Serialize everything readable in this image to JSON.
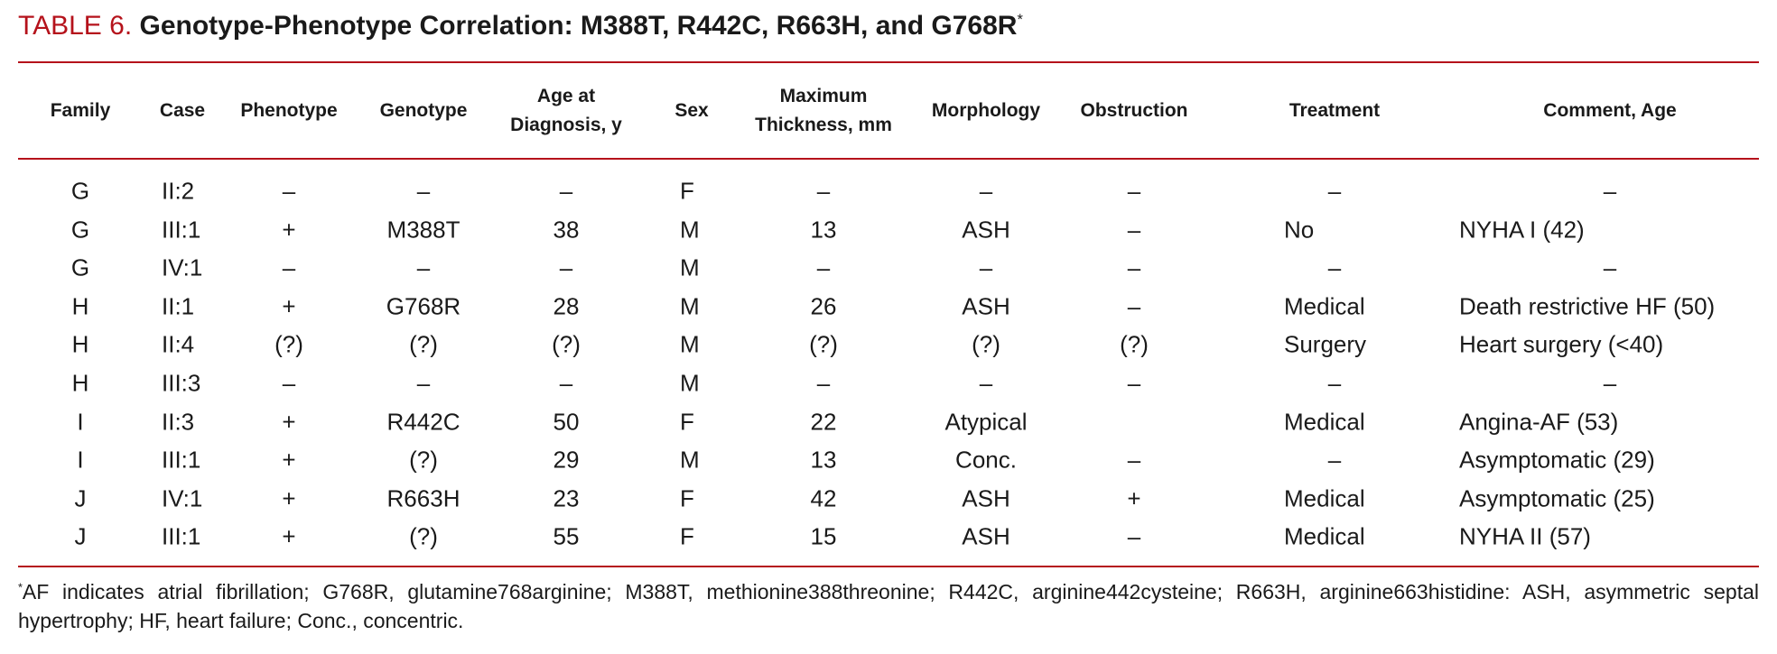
{
  "header": {
    "label": "TABLE 6.",
    "title": "Genotype-Phenotype Correlation: M388T, R442C, R663H, and G768R",
    "marker": "*"
  },
  "table": {
    "columns": [
      [
        "Family"
      ],
      [
        "Case"
      ],
      [
        "Phenotype"
      ],
      [
        "Genotype"
      ],
      [
        "Age at",
        "Diagnosis, y"
      ],
      [
        "Sex"
      ],
      [
        "Maximum",
        "Thickness, mm"
      ],
      [
        "Morphology"
      ],
      [
        "Obstruction"
      ],
      [
        "Treatment"
      ],
      [
        "Comment, Age"
      ]
    ],
    "rows": [
      [
        "G",
        "II:2",
        "–",
        "–",
        "–",
        "F",
        "–",
        "–",
        "–",
        "–",
        "–"
      ],
      [
        "G",
        "III:1",
        "+",
        "M388T",
        "38",
        "M",
        "13",
        "ASH",
        "–",
        "No",
        "NYHA I (42)"
      ],
      [
        "G",
        "IV:1",
        "–",
        "–",
        "–",
        "M",
        "–",
        "–",
        "–",
        "–",
        "–"
      ],
      [
        "H",
        "II:1",
        "+",
        "G768R",
        "28",
        "M",
        "26",
        "ASH",
        "–",
        "Medical",
        "Death restrictive HF (50)"
      ],
      [
        "H",
        "II:4",
        "(?)",
        "(?)",
        "(?)",
        "M",
        "(?)",
        "(?)",
        "(?)",
        "Surgery",
        "Heart surgery (<40)"
      ],
      [
        "H",
        "III:3",
        "–",
        "–",
        "–",
        "M",
        "–",
        "–",
        "–",
        "–",
        "–"
      ],
      [
        "I",
        "II:3",
        "+",
        "R442C",
        "50",
        "F",
        "22",
        "Atypical",
        null,
        "Medical",
        "Angina-AF (53)"
      ],
      [
        "I",
        "III:1",
        "+",
        "(?)",
        "29",
        "M",
        "13",
        "Conc.",
        "–",
        "–",
        "Asymptomatic (29)"
      ],
      [
        "J",
        "IV:1",
        "+",
        "R663H",
        "23",
        "F",
        "42",
        "ASH",
        "+",
        "Medical",
        "Asymptomatic (25)"
      ],
      [
        "J",
        "III:1",
        "+",
        "(?)",
        "55",
        "F",
        "15",
        "ASH",
        "–",
        "Medical",
        "NYHA II (57)"
      ]
    ]
  },
  "footnote": {
    "marker": "*",
    "text": "AF indicates atrial fibrillation; G768R, glutamine768arginine; M388T, methionine388threonine; R442C, arginine442cysteine; R663H, arginine663histidine: ASH, asymmetric septal hypertrophy; HF, heart failure; Conc., concentric."
  }
}
